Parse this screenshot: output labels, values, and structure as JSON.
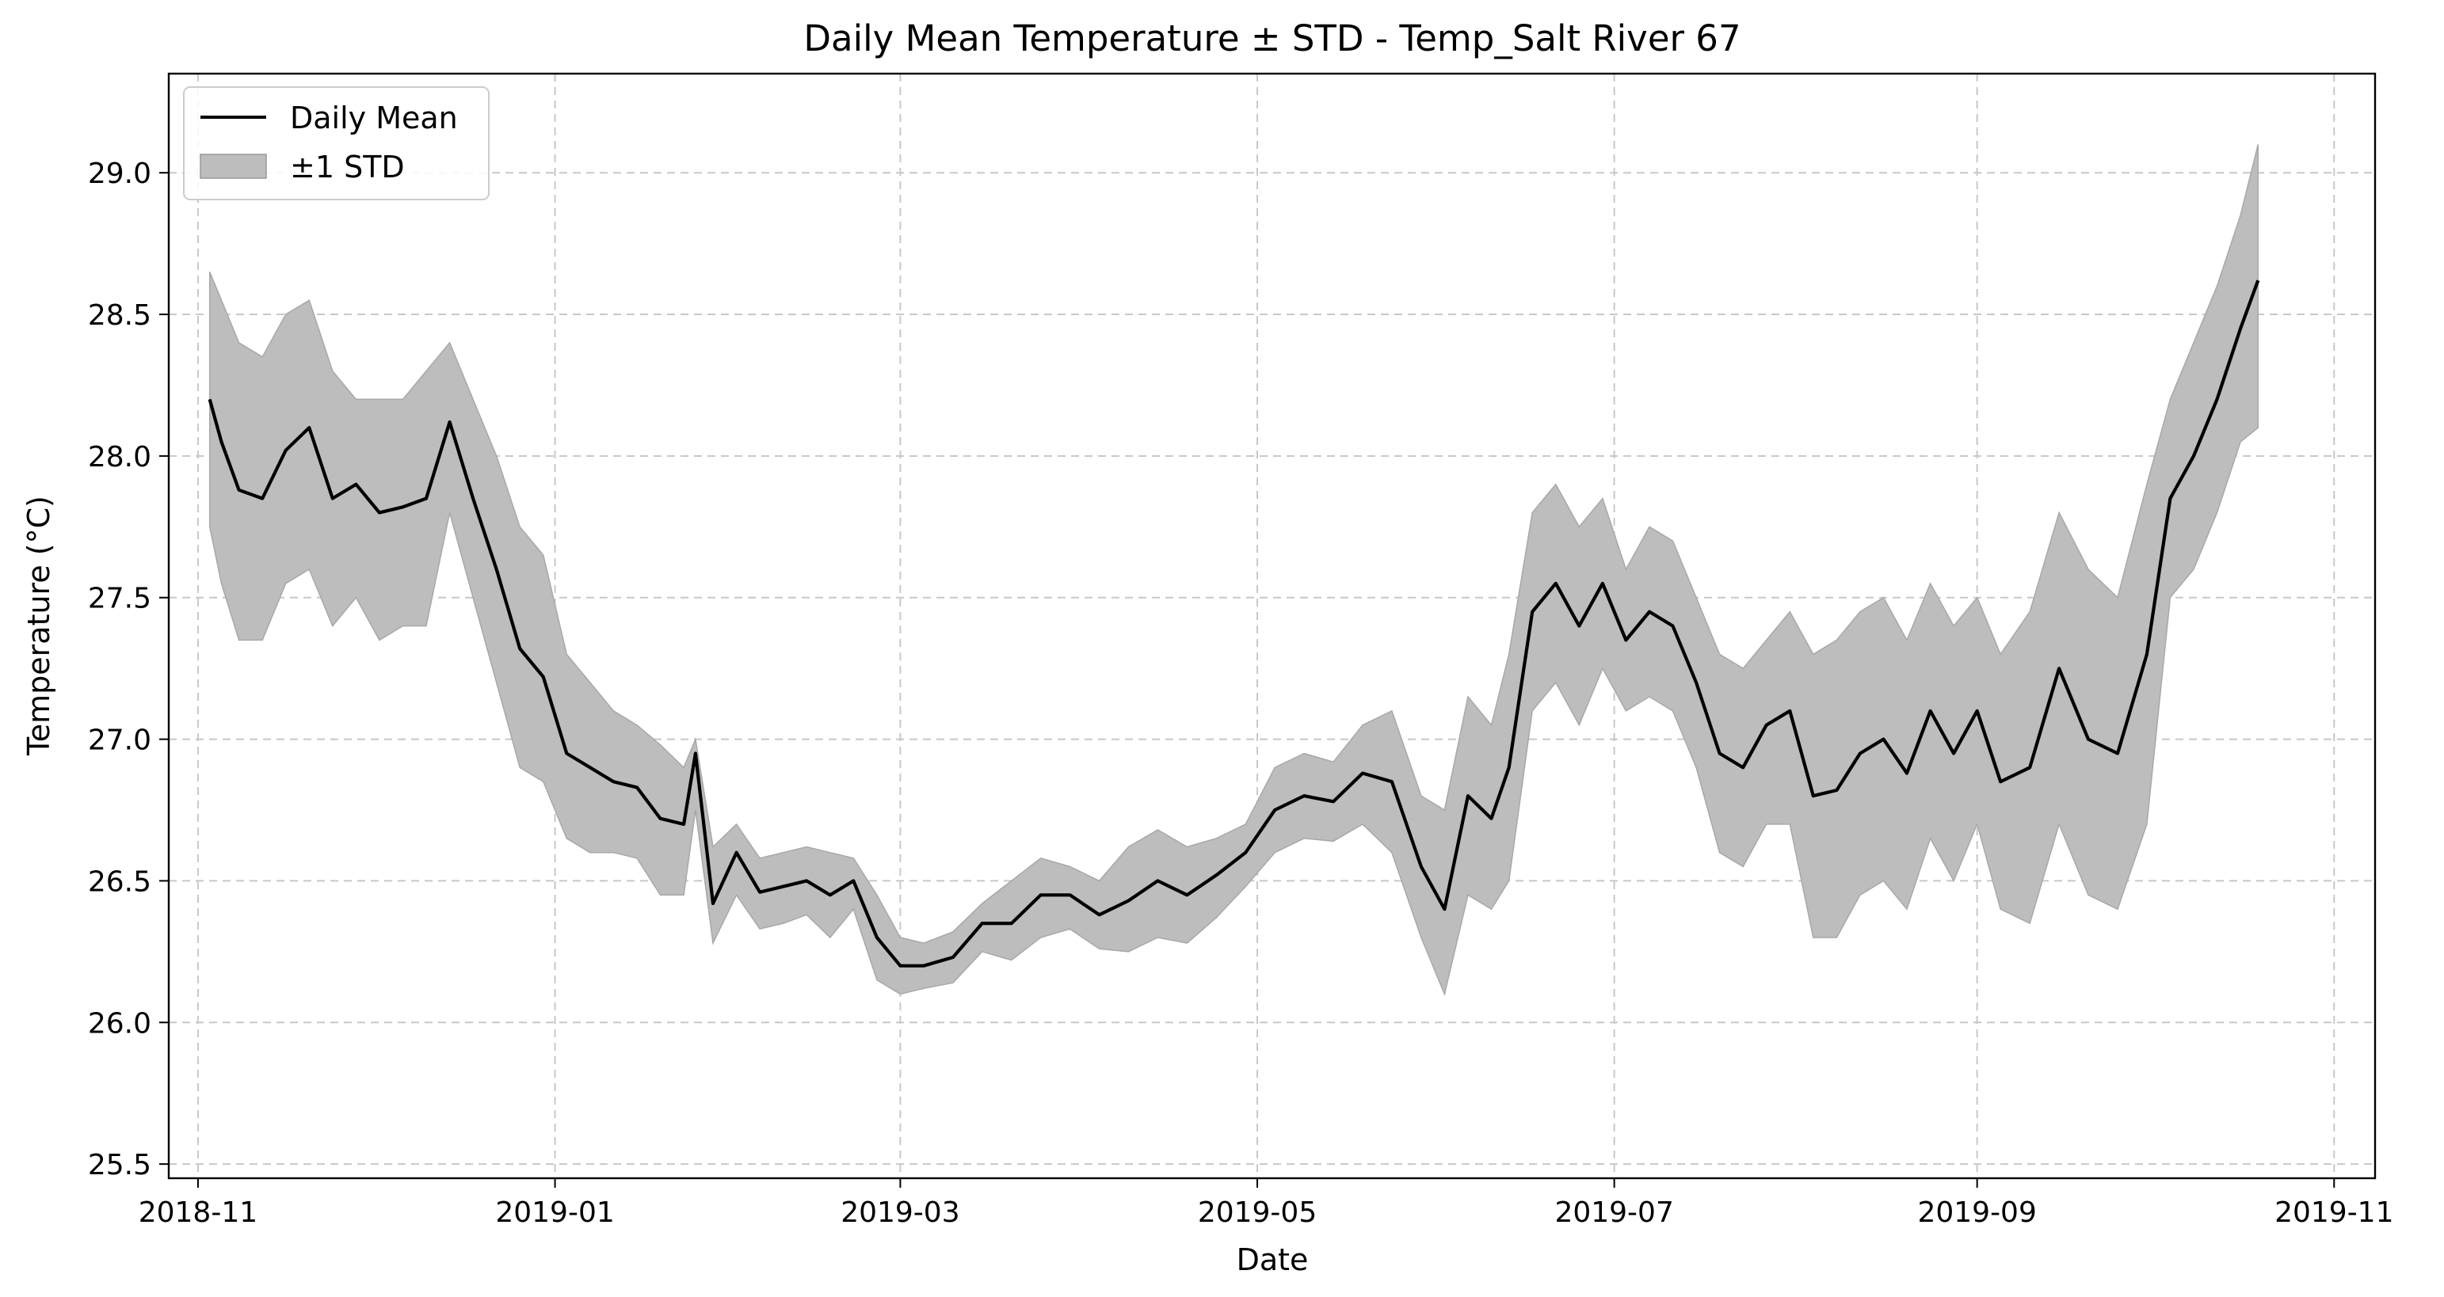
{
  "chart_data": {
    "type": "line",
    "title": "Daily Mean Temperature ± STD - Temp_Salt River 67",
    "xlabel": "Date",
    "ylabel": "Temperature (°C)",
    "xlim": [
      "2018-10-27",
      "2019-11-08"
    ],
    "ylim": [
      25.45,
      29.35
    ],
    "x_ticks": [
      "2018-11",
      "2019-01",
      "2019-03",
      "2019-05",
      "2019-07",
      "2019-09",
      "2019-11"
    ],
    "y_ticks": [
      "25.5",
      "26.0",
      "26.5",
      "27.0",
      "27.5",
      "28.0",
      "28.5",
      "29.0"
    ],
    "grid": true,
    "legend_position": "top-left",
    "x": [
      "2018-11-03",
      "2018-11-05",
      "2018-11-08",
      "2018-11-12",
      "2018-11-16",
      "2018-11-20",
      "2018-11-24",
      "2018-11-28",
      "2018-12-02",
      "2018-12-06",
      "2018-12-10",
      "2018-12-14",
      "2018-12-18",
      "2018-12-22",
      "2018-12-26",
      "2018-12-30",
      "2019-01-03",
      "2019-01-07",
      "2019-01-11",
      "2019-01-15",
      "2019-01-19",
      "2019-01-23",
      "2019-01-25",
      "2019-01-28",
      "2019-02-01",
      "2019-02-05",
      "2019-02-09",
      "2019-02-13",
      "2019-02-17",
      "2019-02-21",
      "2019-02-25",
      "2019-03-01",
      "2019-03-05",
      "2019-03-10",
      "2019-03-15",
      "2019-03-20",
      "2019-03-25",
      "2019-03-30",
      "2019-04-04",
      "2019-04-09",
      "2019-04-14",
      "2019-04-19",
      "2019-04-24",
      "2019-04-29",
      "2019-05-04",
      "2019-05-09",
      "2019-05-14",
      "2019-05-19",
      "2019-05-24",
      "2019-05-29",
      "2019-06-02",
      "2019-06-06",
      "2019-06-10",
      "2019-06-13",
      "2019-06-17",
      "2019-06-21",
      "2019-06-25",
      "2019-06-29",
      "2019-07-03",
      "2019-07-07",
      "2019-07-11",
      "2019-07-15",
      "2019-07-19",
      "2019-07-23",
      "2019-07-27",
      "2019-07-31",
      "2019-08-04",
      "2019-08-08",
      "2019-08-12",
      "2019-08-16",
      "2019-08-20",
      "2019-08-24",
      "2019-08-28",
      "2019-09-01",
      "2019-09-05",
      "2019-09-10",
      "2019-09-15",
      "2019-09-20",
      "2019-09-25",
      "2019-09-30",
      "2019-10-04",
      "2019-10-08",
      "2019-10-12",
      "2019-10-16",
      "2019-10-19"
    ],
    "series": [
      {
        "name": "Daily Mean",
        "color": "#000000",
        "values": [
          28.2,
          28.05,
          27.88,
          27.85,
          28.02,
          28.1,
          27.85,
          27.9,
          27.8,
          27.82,
          27.85,
          28.12,
          27.85,
          27.6,
          27.32,
          27.22,
          26.95,
          26.9,
          26.85,
          26.83,
          26.72,
          26.7,
          26.95,
          26.42,
          26.6,
          26.46,
          26.48,
          26.5,
          26.45,
          26.5,
          26.3,
          26.2,
          26.2,
          26.23,
          26.35,
          26.35,
          26.45,
          26.45,
          26.38,
          26.43,
          26.5,
          26.45,
          26.52,
          26.6,
          26.75,
          26.8,
          26.78,
          26.88,
          26.85,
          26.55,
          26.4,
          26.8,
          26.72,
          26.9,
          27.45,
          27.55,
          27.4,
          27.55,
          27.35,
          27.45,
          27.4,
          27.2,
          26.95,
          26.9,
          27.05,
          27.1,
          26.8,
          26.82,
          26.95,
          27.0,
          26.88,
          27.1,
          26.95,
          27.1,
          26.85,
          26.9,
          27.25,
          27.0,
          26.95,
          27.3,
          27.85,
          28.0,
          28.2,
          28.45,
          28.62
        ]
      },
      {
        "name": "±1 STD",
        "color": "#bdbdbd",
        "upper": [
          28.65,
          28.55,
          28.4,
          28.35,
          28.5,
          28.55,
          28.3,
          28.2,
          28.2,
          28.2,
          28.3,
          28.4,
          28.2,
          28.0,
          27.75,
          27.65,
          27.3,
          27.2,
          27.1,
          27.05,
          26.98,
          26.9,
          27.0,
          26.62,
          26.7,
          26.58,
          26.6,
          26.62,
          26.6,
          26.58,
          26.45,
          26.3,
          26.28,
          26.32,
          26.42,
          26.5,
          26.58,
          26.55,
          26.5,
          26.62,
          26.68,
          26.62,
          26.65,
          26.7,
          26.9,
          26.95,
          26.92,
          27.05,
          27.1,
          26.8,
          26.75,
          27.15,
          27.05,
          27.3,
          27.8,
          27.9,
          27.75,
          27.85,
          27.6,
          27.75,
          27.7,
          27.5,
          27.3,
          27.25,
          27.35,
          27.45,
          27.3,
          27.35,
          27.45,
          27.5,
          27.35,
          27.55,
          27.4,
          27.5,
          27.3,
          27.45,
          27.8,
          27.6,
          27.5,
          27.9,
          28.2,
          28.4,
          28.6,
          28.85,
          29.1
        ]
      }
    ],
    "lower": [
      27.75,
      27.55,
      27.35,
      27.35,
      27.55,
      27.6,
      27.4,
      27.5,
      27.35,
      27.4,
      27.4,
      27.8,
      27.5,
      27.2,
      26.9,
      26.85,
      26.65,
      26.6,
      26.6,
      26.58,
      26.45,
      26.45,
      26.75,
      26.28,
      26.45,
      26.33,
      26.35,
      26.38,
      26.3,
      26.4,
      26.15,
      26.1,
      26.12,
      26.14,
      26.25,
      26.22,
      26.3,
      26.33,
      26.26,
      26.25,
      26.3,
      26.28,
      26.37,
      26.48,
      26.6,
      26.65,
      26.64,
      26.7,
      26.6,
      26.3,
      26.1,
      26.45,
      26.4,
      26.5,
      27.1,
      27.2,
      27.05,
      27.25,
      27.1,
      27.15,
      27.1,
      26.9,
      26.6,
      26.55,
      26.7,
      26.7,
      26.3,
      26.3,
      26.45,
      26.5,
      26.4,
      26.65,
      26.5,
      26.7,
      26.4,
      26.35,
      26.7,
      26.45,
      26.4,
      26.7,
      27.5,
      27.6,
      27.8,
      28.05,
      28.1
    ]
  }
}
